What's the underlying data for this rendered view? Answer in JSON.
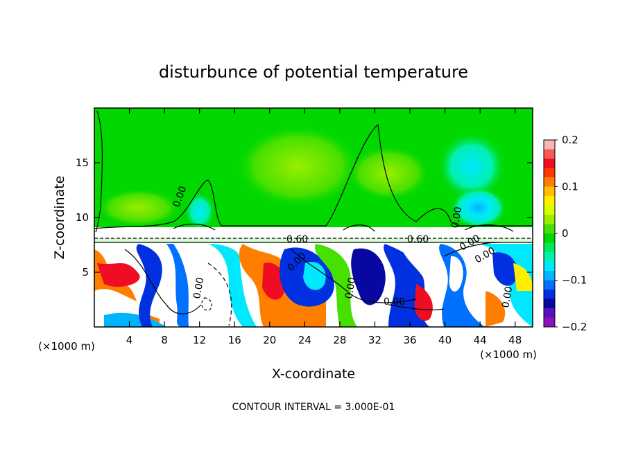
{
  "chart_data": {
    "type": "heatmap",
    "title": "disturbunce of potential temperature",
    "xlabel": "X-coordinate",
    "ylabel": "Z-coordinate",
    "x_unit": "(×1000 m)",
    "x_unit_right": "(×1000 m)",
    "xlim": [
      0,
      50
    ],
    "ylim": [
      0,
      20
    ],
    "x_ticks": [
      4,
      8,
      12,
      16,
      20,
      24,
      28,
      32,
      36,
      40,
      44,
      48
    ],
    "y_ticks": [
      5,
      10,
      15
    ],
    "colorbar": {
      "range": [
        -0.2,
        0.2
      ],
      "tick_values": [
        0.2,
        0.1,
        0,
        -0.1,
        -0.2
      ],
      "tick_labels": [
        "0.2",
        "0.1",
        "0",
        "−0.1",
        "−0.2"
      ],
      "colors": [
        "#fbb5b5",
        "#f85858",
        "#ee0d22",
        "#ff3a00",
        "#ff7e00",
        "#ffc000",
        "#ffee00",
        "#d6ff00",
        "#9aee00",
        "#48e000",
        "#00d800",
        "#00e85a",
        "#00f0b0",
        "#00e8ff",
        "#00b4ff",
        "#0070ff",
        "#0030e0",
        "#0808a0",
        "#5810c0",
        "#9010b8"
      ]
    },
    "contour_labels": [
      "0.00",
      "0.60",
      "0.00",
      "0.60",
      "0.00",
      "0.00",
      "0.00",
      "0.00",
      "0.00",
      "0.00",
      "0.00",
      "0.00"
    ],
    "footnote": "CONTOUR INTERVAL = 3.000E-01"
  }
}
